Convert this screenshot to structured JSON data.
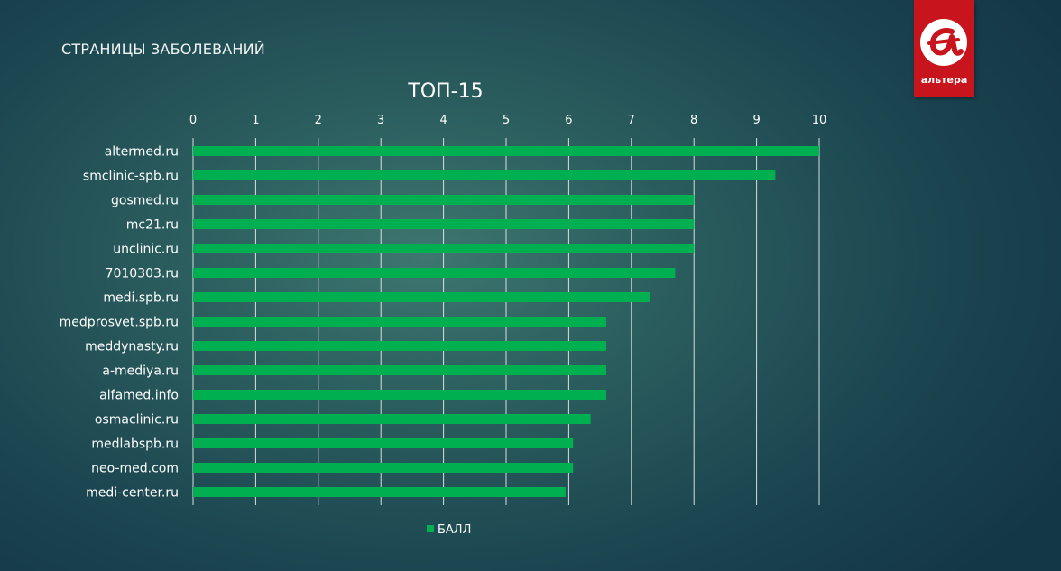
{
  "header": {
    "section_title": "СТРАНИЦЫ ЗАБОЛЕВАНИЙ"
  },
  "logo": {
    "text": "альтера",
    "bg_color": "#c8141c"
  },
  "chart_data": {
    "type": "bar",
    "orientation": "horizontal",
    "title": "ТОП-15",
    "xlabel": "",
    "ylabel": "",
    "xlim": [
      0,
      10
    ],
    "x_ticks": [
      "0",
      "1",
      "2",
      "3",
      "4",
      "5",
      "6",
      "7",
      "8",
      "9",
      "10"
    ],
    "grid": true,
    "axis_position": "top",
    "legend_position": "bottom",
    "categories": [
      "altermed.ru",
      "smclinic-spb.ru",
      "gosmed.ru",
      "mc21.ru",
      "unclinic.ru",
      "7010303.ru",
      "medi.spb.ru",
      "medprosvet.spb.ru",
      "meddynasty.ru",
      "a-mediya.ru",
      "alfamed.info",
      "osmaclinic.ru",
      "medlabspb.ru",
      "neo-med.com",
      "medi-center.ru"
    ],
    "series": [
      {
        "name": "БАЛЛ",
        "color": "#00b050",
        "values": [
          10.0,
          9.3,
          8.0,
          8.0,
          8.0,
          7.7,
          7.3,
          6.6,
          6.6,
          6.6,
          6.6,
          6.35,
          6.07,
          6.07,
          5.95
        ]
      }
    ]
  }
}
